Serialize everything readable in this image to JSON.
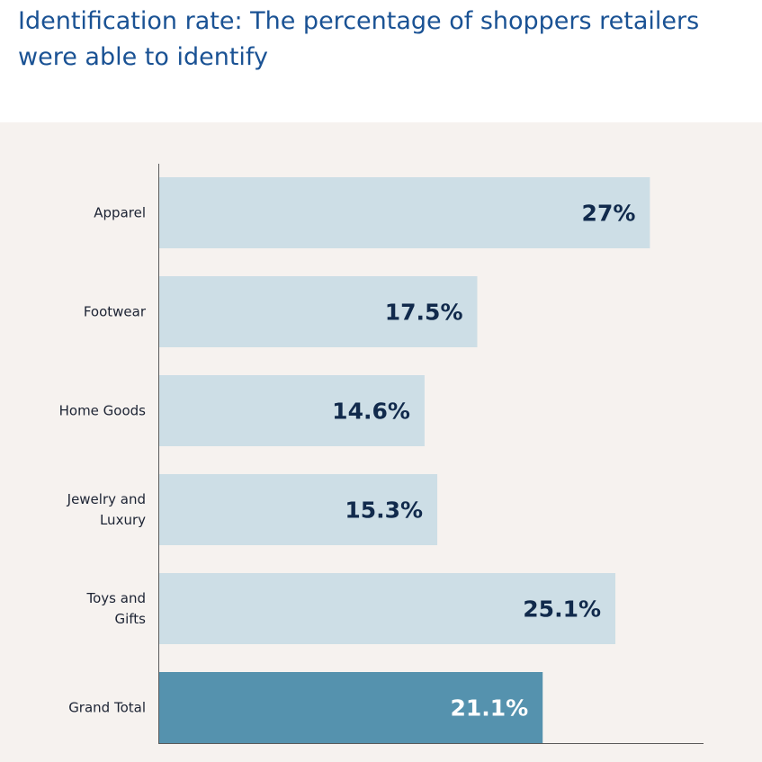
{
  "title": "Identification rate: The percentage of shoppers retailers were able to identify",
  "colors": {
    "bar": "#cddee6",
    "bar_highlight": "#5592ae",
    "label_dark": "#112a4c",
    "label_light": "#ffffff",
    "background": "#f6f2ef",
    "title": "#1a5294"
  },
  "chart_data": {
    "type": "bar",
    "orientation": "horizontal",
    "categories": [
      [
        "Apparel"
      ],
      [
        "Footwear"
      ],
      [
        "Home Goods"
      ],
      [
        "Jewelry and",
        "Luxury"
      ],
      [
        "Toys and",
        "Gifts"
      ],
      [
        "Grand Total"
      ]
    ],
    "values": [
      27,
      17.5,
      14.6,
      15.3,
      25.1,
      21.1
    ],
    "value_labels": [
      "27%",
      "17.5%",
      "14.6%",
      "15.3%",
      "25.1%",
      "21.1%"
    ],
    "highlight_index": 5,
    "xlim": [
      0,
      30
    ],
    "grid": false
  }
}
